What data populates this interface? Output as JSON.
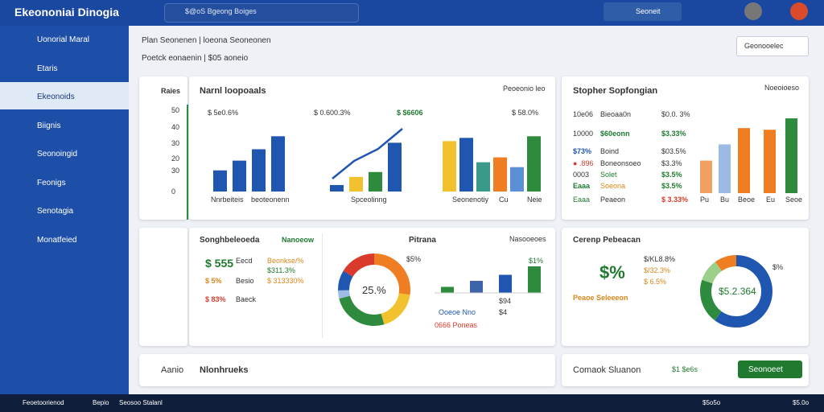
{
  "topbar": {
    "logo": "Ekeononiai Dinogia",
    "search": "$@oS Bgeong Boiges",
    "button": "Seoneit"
  },
  "sidebar": [
    "Uonorial Maral",
    "Etaris",
    "Ekeonoids",
    "Biignis",
    "Seonoingid",
    "Feonigs",
    "Senotagia",
    "Monatfeied"
  ],
  "header": {
    "line1": "Plan Seonenen | loeona Seoneonen",
    "line2": "Poetck eonaenin | $05 aoneio",
    "dropdown": "Geonooelec"
  },
  "axis_card": {
    "label": "Raies",
    "ticks": [
      "50",
      "40",
      "30",
      "20",
      "30",
      "0"
    ]
  },
  "bars_card": {
    "title": "Narnl loopoaals",
    "note": "Peoeonio leo",
    "groups": [
      {
        "label": "$ 5e0.6%",
        "values": [
          13,
          19,
          26,
          34
        ],
        "colors": [
          "#1f56b0",
          "#1f56b0",
          "#1f56b0",
          "#1f56b0"
        ]
      },
      {
        "label": "$ 0.600.3%",
        "values": [
          4,
          9,
          12,
          30
        ],
        "colors": [
          "#1f56b0",
          "#f2c12e",
          "#2e8b3e",
          "#1f56b0"
        ]
      },
      {
        "label": "$ $6606",
        "values": [
          31,
          33,
          18,
          21,
          15,
          34
        ],
        "colors": [
          "#f2c12e",
          "#1f56b0",
          "#3a9a8a",
          "#ef7d22",
          "#5b8fd6",
          "#2e8b3e"
        ]
      },
      {
        "label": "$ 58.0%",
        "values": [],
        "colors": []
      }
    ],
    "x_labels": [
      "Nnrbeiteis",
      "beoteonenn",
      "Spceolinng",
      "Seonenotiy",
      "Cu",
      "Neie"
    ]
  },
  "stack_card": {
    "title": "Stopher Sopfongian",
    "note": "Noeoioeso",
    "rows": [
      [
        "10e06",
        "Bieoaa0n",
        "$0.0. 3%"
      ],
      [
        "10000",
        "$60eonn",
        "$3.33%"
      ],
      [
        "$73%",
        "Boind",
        "$03.5%"
      ],
      [
        "● .896",
        "Boneonsoeo",
        "$3.3%"
      ],
      [
        "0003",
        "Solet",
        "$3.5%"
      ],
      [
        "Eaaa",
        "Soeona",
        "$3.5%"
      ],
      [
        "Eaaa",
        "Peaeon",
        "$ 3.33%"
      ]
    ],
    "values": [
      20,
      30,
      40,
      39,
      46
    ],
    "colors": [
      "#f0a060",
      "#9bbbe4",
      "#ef7d22",
      "#ef7d22",
      "#2e8b3e"
    ],
    "x_labels": [
      "Pu",
      "Bu",
      "Beoe",
      "Eu",
      "Seoe"
    ]
  },
  "kpi_card": {
    "title": "Songhbeleoeda",
    "note": "Nanoeow",
    "rows": [
      [
        "$ 555",
        "Eecd",
        "Beonkse/%",
        "$311.3%"
      ],
      [
        "$ 5%",
        "Besio",
        "$ 313330%",
        ""
      ],
      [
        "$ 83%",
        "Baeck",
        "",
        ""
      ]
    ]
  },
  "donut_card": {
    "title": "Pitrana",
    "note": "Nasooeoes",
    "corner": "$5%",
    "center": "25.%",
    "donut": [
      30,
      20,
      28,
      4,
      10,
      18
    ],
    "donut_colors": [
      "#ef7d22",
      "#f2c12e",
      "#2e8b3e",
      "#9bbbe4",
      "#1f56b0",
      "#d93a2b"
    ],
    "bars": [
      5,
      10,
      15,
      22
    ],
    "bar_colors": [
      "#2e8b3e",
      "#3d63a8",
      "#1f56b0",
      "#2e8b3e"
    ],
    "bar_labels": [
      "$1%",
      "$4"
    ],
    "legend": [
      "Ooeoe Nno",
      "$94",
      "0666 Poneas"
    ]
  },
  "ring_card": {
    "title": "Cerenp Pebeacan",
    "big": "$%",
    "lines": [
      "$/KL8.8%",
      "$/32.3%",
      "$ 6.5%"
    ],
    "tag": "Peaoe Seleeeon",
    "corner": "$%",
    "center": "$5.2.364",
    "donut": [
      60,
      20,
      10,
      10
    ],
    "donut_colors": [
      "#1f56b0",
      "#2e8b3e",
      "#9ccf8a",
      "#ef7d22"
    ]
  },
  "footer_cards": {
    "left_a": "Aanio",
    "left_b": "Nlonhrueks",
    "right_a": "Comaok Sluanon",
    "right_b": "$1 $e6s",
    "button": "Seonoeet"
  },
  "statusbar": [
    "Feoetoorienod",
    "Bepio",
    "Seosoo Stalanl",
    "$5o5o",
    "$5.0o"
  ]
}
